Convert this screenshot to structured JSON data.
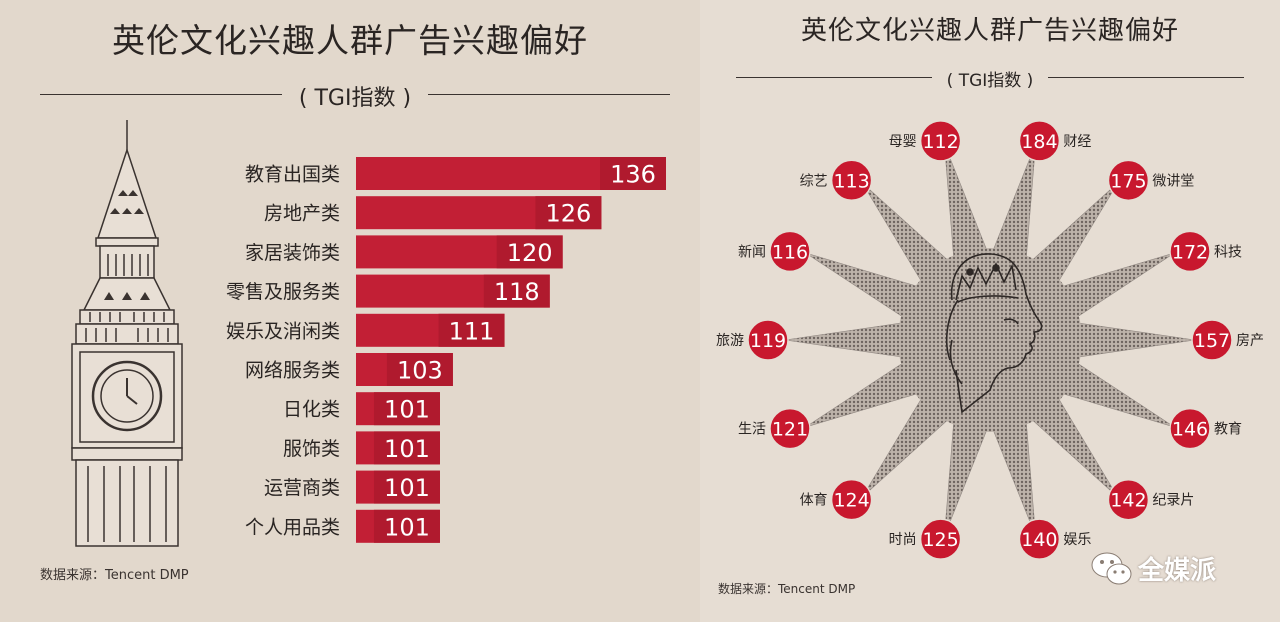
{
  "left": {
    "title": "英伦文化兴趣人群广告兴趣偏好",
    "subtitle": "( TGI指数 )",
    "source": "数据来源：Tencent DMP"
  },
  "right": {
    "title": "英伦文化兴趣人群广告兴趣偏好",
    "subtitle": "( TGI指数 )",
    "source": "数据来源：Tencent DMP"
  },
  "watermark": {
    "text": "全媒派"
  },
  "colors": {
    "bar": "#c21f35",
    "bar_dark": "#b01a2e",
    "circle": "#c8182e",
    "text": "#2a2523",
    "star": "#8f8680"
  },
  "chart_data": [
    {
      "type": "bar",
      "orientation": "horizontal",
      "title": "英伦文化兴趣人群广告兴趣偏好",
      "subtitle": "( TGI指数 )",
      "categories": [
        "教育出国类",
        "房地产类",
        "家居装饰类",
        "零售及服务类",
        "娱乐及消闲类",
        "网络服务类",
        "日化类",
        "服饰类",
        "运营商类",
        "个人用品类"
      ],
      "values": [
        136,
        126,
        120,
        118,
        111,
        103,
        101,
        101,
        101,
        101
      ],
      "xlabel": "",
      "ylabel": "TGI指数"
    },
    {
      "type": "radial",
      "title": "英伦文化兴趣人群广告兴趣偏好",
      "subtitle": "( TGI指数 )",
      "categories": [
        "财经",
        "微讲堂",
        "科技",
        "房产",
        "教育",
        "纪录片",
        "娱乐",
        "时尚",
        "体育",
        "生活",
        "旅游",
        "新闻",
        "综艺",
        "母婴"
      ],
      "values": [
        184,
        175,
        172,
        157,
        146,
        142,
        140,
        125,
        124,
        121,
        119,
        116,
        113,
        112
      ]
    }
  ]
}
